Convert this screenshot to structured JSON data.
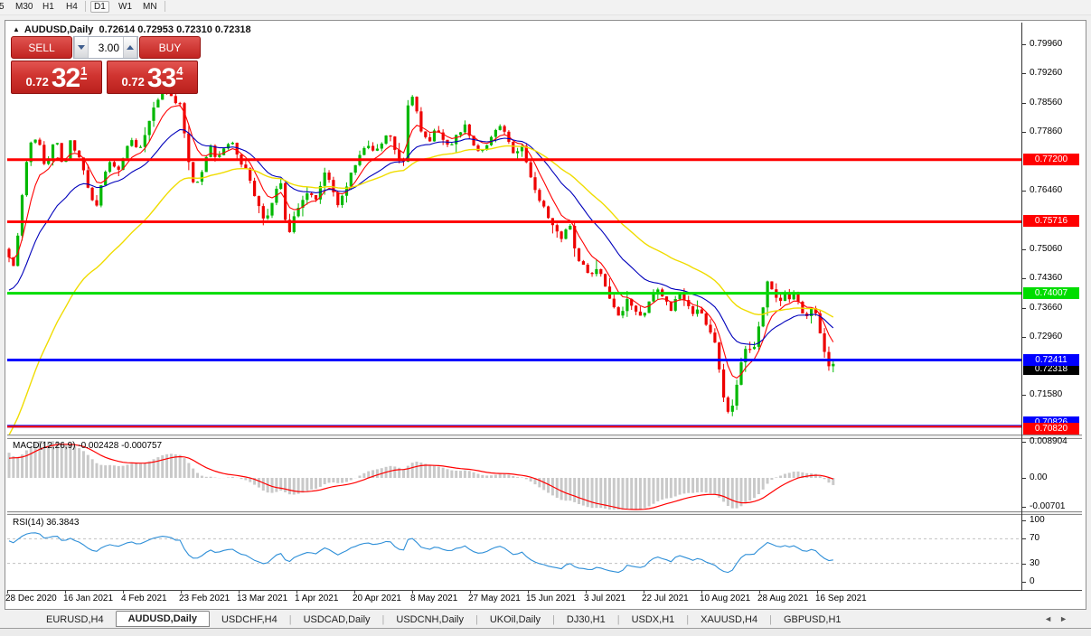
{
  "toolbar": {
    "timeframes": [
      "5",
      "M30",
      "H1",
      "H4",
      "D1",
      "W1",
      "MN"
    ],
    "active_timeframe": "D1"
  },
  "chart": {
    "symbol": "AUDUSD,Daily",
    "ohlc_text": "0.72614 0.72953 0.72310 0.72318",
    "title_arrow_icon": "▲"
  },
  "trade_panel": {
    "sell_label": "SELL",
    "buy_label": "BUY",
    "volume": "3.00",
    "sell_price": {
      "small": "0.72",
      "big": "32",
      "sup": "1"
    },
    "buy_price": {
      "small": "0.72",
      "big": "33",
      "sup": "4"
    }
  },
  "indicators": {
    "macd_label": "MACD(12,26,9) -0.002428 -0.000757",
    "rsi_label": "RSI(14) 36.3843"
  },
  "tabs": {
    "items": [
      "EURUSD,H4",
      "AUDUSD,Daily",
      "USDCHF,H4",
      "USDCAD,Daily",
      "USDCNH,Daily",
      "UKOil,Daily",
      "DJ30,H1",
      "USDX,H1",
      "XAUUSD,H4",
      "GBPUSD,H1"
    ],
    "active": "AUDUSD,Daily",
    "scroll_left_icon": "◄",
    "scroll_right_icon": "►"
  },
  "colors": {
    "bull": "#00b800",
    "bear": "#ee0000",
    "ma_fast": "#ff0000",
    "ma_mid": "#0000bb",
    "ma_slow": "#f0dc00",
    "macd_hist": "#c9c9c9",
    "macd_signal": "#ff0000",
    "rsi_line": "#2e8fd8",
    "panel_red": "#d03430"
  },
  "chart_data": {
    "type": "candlestick",
    "symbol": "AUDUSD",
    "timeframe": "Daily",
    "ylim": [
      0.7063,
      0.8043
    ],
    "price_axis_ticks": [
      "0.79960",
      "0.79260",
      "0.78560",
      "0.77860",
      "0.76460",
      "0.75060",
      "0.74360",
      "0.73660",
      "0.72960",
      "0.71580"
    ],
    "x_dates": [
      "28 Dec 2020",
      "16 Jan 2021",
      "4 Feb 2021",
      "23 Feb 2021",
      "13 Mar 2021",
      "1 Apr 2021",
      "20 Apr 2021",
      "8 May 2021",
      "27 May 2021",
      "15 Jun 2021",
      "3 Jul 2021",
      "22 Jul 2021",
      "10 Aug 2021",
      "28 Aug 2021",
      "16 Sep 2021"
    ],
    "date_x": [
      6,
      70,
      134,
      198,
      262,
      326,
      390,
      454,
      518,
      582,
      646,
      710,
      774,
      838,
      902
    ],
    "close_path_keypoints": [
      [
        6,
        0.753
      ],
      [
        10,
        0.749
      ],
      [
        16,
        0.7455
      ],
      [
        22,
        0.759
      ],
      [
        28,
        0.77
      ],
      [
        36,
        0.778
      ],
      [
        44,
        0.7755
      ],
      [
        50,
        0.77
      ],
      [
        56,
        0.7745
      ],
      [
        62,
        0.7775
      ],
      [
        70,
        0.77
      ],
      [
        78,
        0.7765
      ],
      [
        86,
        0.773
      ],
      [
        94,
        0.768
      ],
      [
        100,
        0.763
      ],
      [
        106,
        0.76
      ],
      [
        114,
        0.768
      ],
      [
        122,
        0.7715
      ],
      [
        130,
        0.769
      ],
      [
        138,
        0.7735
      ],
      [
        146,
        0.777
      ],
      [
        154,
        0.7745
      ],
      [
        162,
        0.779
      ],
      [
        170,
        0.7845
      ],
      [
        178,
        0.7875
      ],
      [
        186,
        0.7885
      ],
      [
        192,
        0.7855
      ],
      [
        198,
        0.787
      ],
      [
        204,
        0.778
      ],
      [
        210,
        0.77
      ],
      [
        216,
        0.7645
      ],
      [
        224,
        0.77
      ],
      [
        232,
        0.7755
      ],
      [
        240,
        0.772
      ],
      [
        248,
        0.7745
      ],
      [
        256,
        0.777
      ],
      [
        264,
        0.772
      ],
      [
        272,
        0.77
      ],
      [
        280,
        0.764
      ],
      [
        288,
        0.76
      ],
      [
        294,
        0.7572
      ],
      [
        302,
        0.7625
      ],
      [
        310,
        0.768
      ],
      [
        318,
        0.7535
      ],
      [
        326,
        0.7585
      ],
      [
        334,
        0.7625
      ],
      [
        342,
        0.765
      ],
      [
        350,
        0.7618
      ],
      [
        358,
        0.77
      ],
      [
        366,
        0.766
      ],
      [
        374,
        0.7605
      ],
      [
        382,
        0.765
      ],
      [
        390,
        0.77
      ],
      [
        398,
        0.773
      ],
      [
        406,
        0.7758
      ],
      [
        414,
        0.7735
      ],
      [
        422,
        0.7762
      ],
      [
        430,
        0.779
      ],
      [
        438,
        0.7738
      ],
      [
        446,
        0.7705
      ],
      [
        453,
        0.789
      ],
      [
        460,
        0.7845
      ],
      [
        466,
        0.7785
      ],
      [
        474,
        0.7758
      ],
      [
        482,
        0.7802
      ],
      [
        490,
        0.7772
      ],
      [
        498,
        0.7748
      ],
      [
        506,
        0.7782
      ],
      [
        514,
        0.7802
      ],
      [
        522,
        0.7762
      ],
      [
        530,
        0.7732
      ],
      [
        538,
        0.7758
      ],
      [
        546,
        0.7782
      ],
      [
        554,
        0.7802
      ],
      [
        562,
        0.7762
      ],
      [
        570,
        0.7732
      ],
      [
        576,
        0.7762
      ],
      [
        584,
        0.77
      ],
      [
        592,
        0.765
      ],
      [
        600,
        0.7612
      ],
      [
        606,
        0.758
      ],
      [
        614,
        0.7558
      ],
      [
        622,
        0.7528
      ],
      [
        630,
        0.757
      ],
      [
        638,
        0.749
      ],
      [
        646,
        0.7465
      ],
      [
        654,
        0.7438
      ],
      [
        662,
        0.747
      ],
      [
        670,
        0.7418
      ],
      [
        678,
        0.7368
      ],
      [
        686,
        0.734
      ],
      [
        694,
        0.7392
      ],
      [
        702,
        0.736
      ],
      [
        710,
        0.7338
      ],
      [
        718,
        0.7382
      ],
      [
        726,
        0.742
      ],
      [
        734,
        0.739
      ],
      [
        742,
        0.736
      ],
      [
        750,
        0.7402
      ],
      [
        758,
        0.738
      ],
      [
        766,
        0.7348
      ],
      [
        774,
        0.7372
      ],
      [
        782,
        0.7318
      ],
      [
        790,
        0.729
      ],
      [
        796,
        0.721
      ],
      [
        802,
        0.7128
      ],
      [
        808,
        0.7105
      ],
      [
        814,
        0.7172
      ],
      [
        820,
        0.7232
      ],
      [
        826,
        0.7282
      ],
      [
        832,
        0.7252
      ],
      [
        838,
        0.7312
      ],
      [
        844,
        0.7362
      ],
      [
        850,
        0.7442
      ],
      [
        855,
        0.7408
      ],
      [
        861,
        0.7372
      ],
      [
        867,
        0.7402
      ],
      [
        873,
        0.7382
      ],
      [
        879,
        0.7402
      ],
      [
        885,
        0.7365
      ],
      [
        891,
        0.7342
      ],
      [
        897,
        0.7372
      ],
      [
        903,
        0.7345
      ],
      [
        909,
        0.7292
      ],
      [
        915,
        0.724
      ],
      [
        920,
        0.7212
      ],
      [
        925,
        0.7232
      ]
    ],
    "hlines": [
      {
        "label": "0.77200",
        "price": 0.772,
        "color": "#ff0000",
        "width": 3,
        "text_color": "#ffffff",
        "z": 1
      },
      {
        "label": "0.75716",
        "price": 0.75716,
        "color": "#ff0000",
        "width": 3,
        "text_color": "#ffffff",
        "z": 1
      },
      {
        "label": "0.74007",
        "price": 0.74007,
        "color": "#00dd00",
        "width": 3,
        "text_color": "#ffffff",
        "z": 1
      },
      {
        "label": "0.72411",
        "price": 0.72411,
        "color": "#0000ff",
        "width": 3,
        "text_color": "#ffffff",
        "z": 3
      },
      {
        "label": "0.70826",
        "price": 0.70826,
        "color": "#0000ff",
        "width": 3,
        "text_color": "#ffffff",
        "z": 1
      },
      {
        "label": "0.70820",
        "price": 0.7082,
        "color": "#ff0000",
        "width": 2,
        "text_color": "#ffffff",
        "z": 4
      }
    ],
    "current_price": {
      "label": "0.72318",
      "value": 0.72318,
      "label_bg": "#000000"
    },
    "moving_averages": [
      {
        "name": "fast",
        "period": 7,
        "seed": null
      },
      {
        "name": "mid",
        "period": 20,
        "seed": 0.74
      },
      {
        "name": "slow",
        "period": 40,
        "seed": 0.704
      }
    ],
    "macd": {
      "params": "12,26,9",
      "value": -0.002428,
      "signal": -0.000757,
      "axis_ticks": [
        "0.008904",
        "0.00",
        "-0.00701"
      ],
      "seeds": {
        "ema12_offset": 0.0035,
        "ema26_offset": -0.0035,
        "signal_seed": 0.0045
      }
    },
    "rsi": {
      "period": 14,
      "value": 36.3843,
      "axis_ticks": [
        "100",
        "70",
        "30",
        "0"
      ],
      "levels": [
        70,
        30
      ],
      "seeds": {
        "avg_gain": 0.0024,
        "avg_loss": 0.0012
      }
    },
    "ohlc": {
      "open": "0.72614",
      "high": "0.72953",
      "low": "0.72310",
      "close": "0.72318"
    }
  }
}
